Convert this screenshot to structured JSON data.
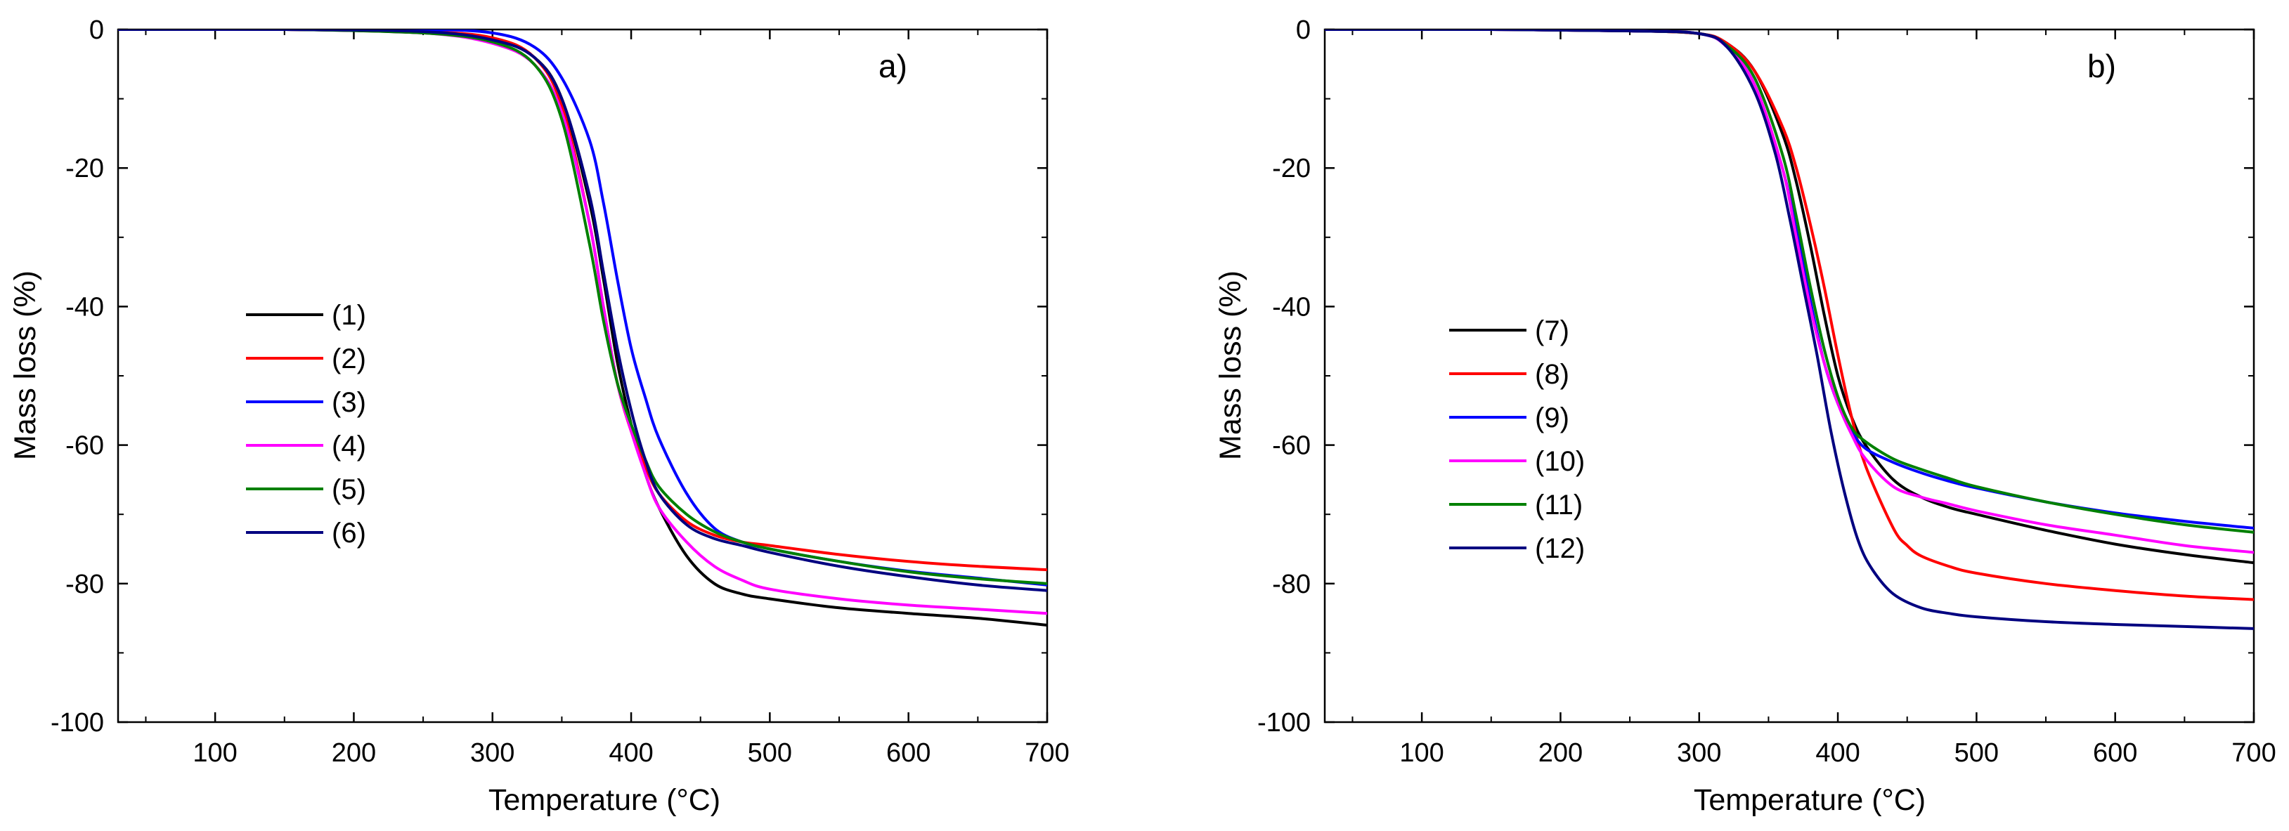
{
  "chart_data": [
    {
      "type": "line",
      "panel_label": "a)",
      "xlabel": "Temperature (°C)",
      "ylabel": "Mass loss (%)",
      "xlim": [
        30,
        700
      ],
      "ylim": [
        -100,
        0
      ],
      "xticks": [
        100,
        200,
        300,
        400,
        500,
        600,
        700
      ],
      "yticks": [
        0,
        -20,
        -40,
        -60,
        -80,
        -100
      ],
      "xtick_labels": [
        "100",
        "200",
        "300",
        "400",
        "500",
        "600",
        "700"
      ],
      "ytick_labels": [
        "0",
        "-20",
        "-40",
        "-60",
        "-80",
        "-100"
      ],
      "legend_position": "center-left",
      "series": [
        {
          "name": "(1)",
          "color": "#000000",
          "x": [
            30,
            150,
            250,
            300,
            330,
            350,
            370,
            380,
            390,
            400,
            410,
            420,
            440,
            460,
            480,
            500,
            550,
            600,
            650,
            700
          ],
          "y": [
            0,
            0,
            -0.5,
            -1.5,
            -4,
            -10,
            -25,
            -36,
            -48,
            -57,
            -64,
            -69,
            -76,
            -80,
            -81.5,
            -82.2,
            -83.5,
            -84.3,
            -85,
            -86
          ]
        },
        {
          "name": "(2)",
          "color": "#ff0000",
          "x": [
            30,
            150,
            250,
            300,
            330,
            350,
            370,
            380,
            390,
            400,
            410,
            420,
            440,
            460,
            480,
            500,
            550,
            600,
            650,
            700
          ],
          "y": [
            0,
            0,
            -0.3,
            -1.2,
            -4,
            -11,
            -28,
            -40,
            -51,
            -58,
            -63,
            -67,
            -71,
            -73,
            -74,
            -74.5,
            -75.8,
            -76.8,
            -77.5,
            -78
          ]
        },
        {
          "name": "(3)",
          "color": "#0000ff",
          "x": [
            30,
            150,
            250,
            300,
            330,
            350,
            370,
            380,
            390,
            400,
            410,
            420,
            440,
            460,
            480,
            500,
            550,
            600,
            650,
            700
          ],
          "y": [
            0,
            0,
            0,
            -0.5,
            -2.5,
            -7,
            -16,
            -25,
            -36,
            -46,
            -53,
            -59,
            -67,
            -72,
            -74,
            -75,
            -76.8,
            -78.2,
            -79.2,
            -80.2
          ]
        },
        {
          "name": "(4)",
          "color": "#ff00ff",
          "x": [
            30,
            150,
            250,
            300,
            330,
            350,
            370,
            380,
            390,
            400,
            410,
            420,
            440,
            460,
            480,
            500,
            550,
            600,
            650,
            700
          ],
          "y": [
            0,
            0,
            -0.5,
            -2,
            -5,
            -12,
            -28,
            -40,
            -51,
            -58,
            -64,
            -69,
            -74,
            -77.5,
            -79.5,
            -80.8,
            -82.2,
            -83.1,
            -83.7,
            -84.3
          ]
        },
        {
          "name": "(5)",
          "color": "#008000",
          "x": [
            30,
            150,
            250,
            300,
            330,
            350,
            370,
            380,
            390,
            400,
            410,
            420,
            440,
            460,
            480,
            500,
            550,
            600,
            650,
            700
          ],
          "y": [
            0,
            0,
            -0.5,
            -1.8,
            -5,
            -13,
            -31,
            -42,
            -51,
            -57,
            -62,
            -66,
            -70,
            -72.5,
            -74,
            -75,
            -76.8,
            -78.3,
            -79.3,
            -80
          ]
        },
        {
          "name": "(6)",
          "color": "#000080",
          "x": [
            30,
            150,
            250,
            300,
            330,
            350,
            370,
            380,
            390,
            400,
            410,
            420,
            440,
            460,
            480,
            500,
            550,
            600,
            650,
            700
          ],
          "y": [
            0,
            0,
            -0.3,
            -1.5,
            -4,
            -10,
            -24,
            -35,
            -46,
            -55,
            -62,
            -67,
            -71.5,
            -73.5,
            -74.5,
            -75.5,
            -77.5,
            -79,
            -80.2,
            -81
          ]
        }
      ]
    },
    {
      "type": "line",
      "panel_label": "b)",
      "xlabel": "Temperature (°C)",
      "ylabel": "Mass loss (%)",
      "xlim": [
        30,
        700
      ],
      "ylim": [
        -100,
        0
      ],
      "xticks": [
        100,
        200,
        300,
        400,
        500,
        600,
        700
      ],
      "yticks": [
        0,
        -20,
        -40,
        -60,
        -80,
        -100
      ],
      "xtick_labels": [
        "100",
        "200",
        "300",
        "400",
        "500",
        "600",
        "700"
      ],
      "ytick_labels": [
        "0",
        "-20",
        "-40",
        "-60",
        "-80",
        "-100"
      ],
      "legend_position": "center-left",
      "series": [
        {
          "name": "(7)",
          "color": "#000000",
          "x": [
            30,
            150,
            250,
            300,
            320,
            340,
            360,
            370,
            380,
            390,
            400,
            410,
            420,
            440,
            460,
            480,
            500,
            550,
            600,
            650,
            700
          ],
          "y": [
            0,
            0,
            -0.2,
            -0.6,
            -2,
            -6,
            -15,
            -22,
            -31,
            -41,
            -50,
            -56,
            -60,
            -65,
            -67.5,
            -69,
            -70,
            -72.3,
            -74.3,
            -75.8,
            -77
          ]
        },
        {
          "name": "(8)",
          "color": "#ff0000",
          "x": [
            30,
            150,
            250,
            300,
            320,
            340,
            360,
            370,
            380,
            390,
            400,
            410,
            420,
            440,
            450,
            460,
            480,
            500,
            550,
            600,
            650,
            700
          ],
          "y": [
            0,
            0,
            -0.2,
            -0.6,
            -2,
            -6,
            -14,
            -20,
            -28,
            -37,
            -47,
            -56,
            -63,
            -72,
            -74.5,
            -76,
            -77.5,
            -78.5,
            -80,
            -81,
            -81.8,
            -82.3
          ]
        },
        {
          "name": "(9)",
          "color": "#0000ff",
          "x": [
            30,
            150,
            250,
            300,
            320,
            340,
            360,
            370,
            380,
            390,
            400,
            410,
            420,
            440,
            460,
            480,
            500,
            550,
            600,
            650,
            700
          ],
          "y": [
            0,
            0,
            -0.2,
            -0.6,
            -2.5,
            -8,
            -20,
            -29,
            -39,
            -48,
            -54,
            -58,
            -60.5,
            -62.5,
            -64,
            -65.2,
            -66.2,
            -68.2,
            -69.8,
            -71,
            -72
          ]
        },
        {
          "name": "(10)",
          "color": "#ff00ff",
          "x": [
            30,
            150,
            250,
            300,
            320,
            340,
            360,
            370,
            380,
            390,
            400,
            410,
            420,
            440,
            460,
            480,
            500,
            550,
            600,
            650,
            700
          ],
          "y": [
            0,
            0,
            -0.2,
            -0.6,
            -2.5,
            -8,
            -20,
            -30,
            -40,
            -48,
            -54,
            -58.5,
            -62,
            -66,
            -67.5,
            -68.5,
            -69.5,
            -71.5,
            -73,
            -74.5,
            -75.5
          ]
        },
        {
          "name": "(11)",
          "color": "#008000",
          "x": [
            30,
            150,
            250,
            300,
            320,
            340,
            360,
            370,
            380,
            390,
            400,
            410,
            420,
            440,
            460,
            480,
            500,
            550,
            600,
            650,
            700
          ],
          "y": [
            0,
            0,
            -0.2,
            -0.6,
            -2.3,
            -7,
            -18,
            -27,
            -37,
            -46,
            -53,
            -57.5,
            -59.5,
            -62,
            -63.5,
            -64.8,
            -66,
            -68.2,
            -70,
            -71.5,
            -72.6
          ]
        },
        {
          "name": "(12)",
          "color": "#000080",
          "x": [
            30,
            150,
            250,
            300,
            320,
            340,
            355,
            365,
            375,
            385,
            395,
            405,
            415,
            425,
            440,
            460,
            480,
            500,
            550,
            600,
            650,
            700
          ],
          "y": [
            0,
            0,
            -0.2,
            -0.6,
            -2.5,
            -9,
            -18,
            -27,
            -37,
            -47,
            -58,
            -67,
            -74,
            -78,
            -81.5,
            -83.5,
            -84.3,
            -84.8,
            -85.5,
            -85.9,
            -86.2,
            -86.5
          ]
        }
      ]
    }
  ]
}
